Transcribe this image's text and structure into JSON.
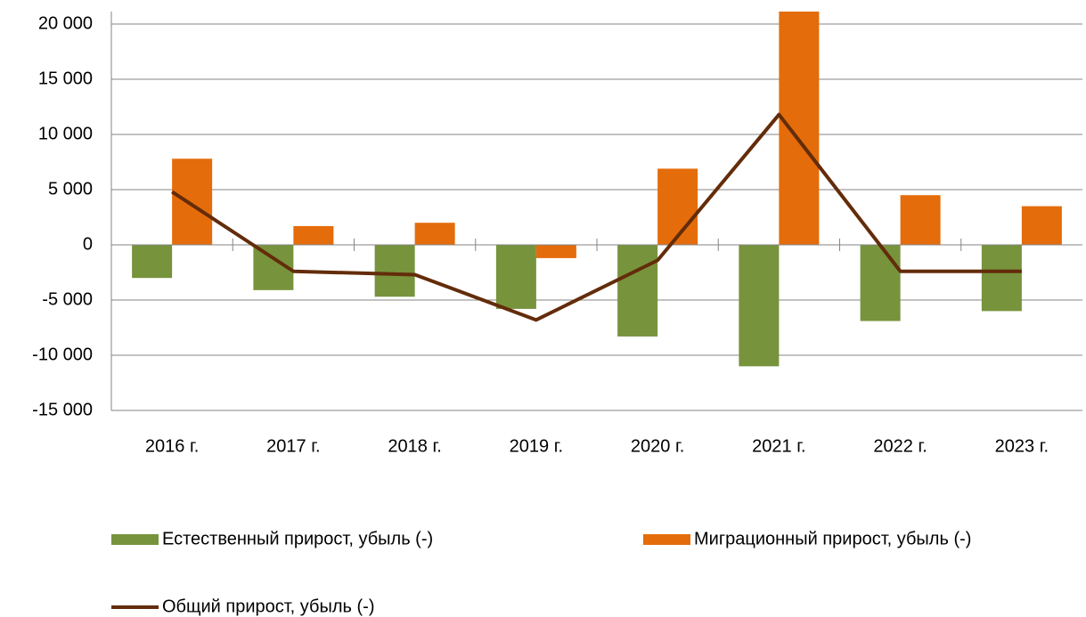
{
  "chart_data": {
    "type": "bar",
    "categories": [
      "2016 г.",
      "2017 г.",
      "2018 г.",
      "2019 г.",
      "2020 г.",
      "2021 г.",
      "2022 г.",
      "2023 г."
    ],
    "series": [
      {
        "name": "Естественный прирост, убыль (-)",
        "color": "#77933c",
        "values": [
          -3000,
          -4100,
          -4700,
          -5800,
          -8300,
          -11000,
          -6900,
          -6000
        ]
      },
      {
        "name": "Миграционный прирост, убыль (-)",
        "color": "#e46c0a",
        "values": [
          7800,
          1700,
          2000,
          -1200,
          6900,
          22800,
          4500,
          3500
        ]
      },
      {
        "name": "Общий прирост, убыль (-)",
        "color": "#632c0a",
        "type": "line",
        "values": [
          4800,
          -2400,
          -2700,
          -6800,
          -1400,
          11800,
          -2400,
          -2400
        ]
      }
    ],
    "ylim": [
      -15000,
      21000
    ],
    "yticks": [
      {
        "value": -15000,
        "label": "-15 000"
      },
      {
        "value": -10000,
        "label": "-10 000"
      },
      {
        "value": -5000,
        "label": "-5 000"
      },
      0,
      {
        "value": 5000,
        "label": "5 000"
      },
      {
        "value": 10000,
        "label": "10 000"
      },
      {
        "value": 15000,
        "label": "15 000"
      },
      {
        "value": 20000,
        "label": "20 000"
      }
    ],
    "grid": true
  }
}
